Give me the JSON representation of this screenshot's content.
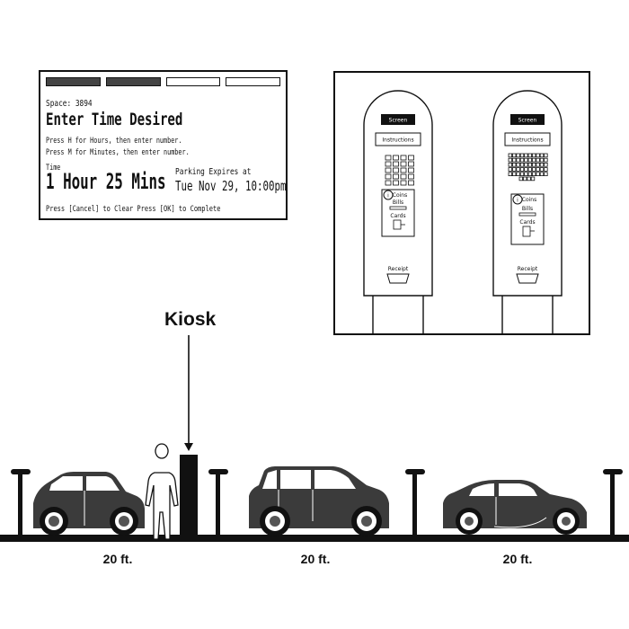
{
  "screen": {
    "progress_steps": [
      true,
      true,
      false,
      false
    ],
    "space_label": "Space: 3894",
    "heading": "Enter Time Desired",
    "instruction_hours": "Press H for Hours, then enter number.",
    "instruction_minutes": "Press M for Minutes, then enter number.",
    "time_label": "Time",
    "time_value": "1 Hour 25 Mins",
    "expires_label": "Parking Expires at",
    "expires_value": "Tue Nov 29, 10:00pm",
    "footer": "Press [Cancel] to Clear    Press [OK] to Complete"
  },
  "kiosks": {
    "screen_label": "Screen",
    "instructions_label": "Instructions",
    "coins_label": "Coins",
    "bills_label": "Bills",
    "cards_label": "Cards",
    "receipt_label": "Receipt",
    "info_symbol": "i"
  },
  "street": {
    "kiosk_label": "Kiosk",
    "distances": [
      "20 ft.",
      "20 ft.",
      "20 ft."
    ]
  }
}
